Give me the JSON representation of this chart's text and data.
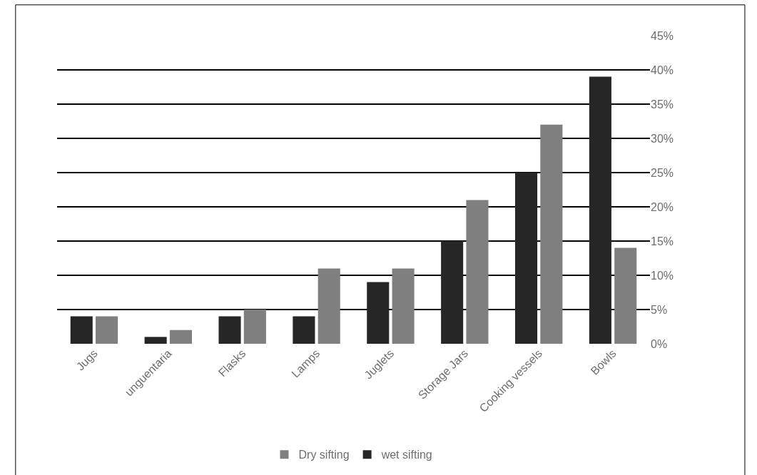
{
  "chart_data": {
    "type": "bar",
    "categories": [
      "Jugs",
      "unguentaria",
      "Flasks",
      "Lamps",
      "Juglets",
      "Storage Jars",
      "Cooking vessels",
      "Bowls"
    ],
    "series": [
      {
        "name": "wet sifting",
        "color": "#262626",
        "values": [
          4,
          1,
          4,
          4,
          9,
          15,
          25,
          39
        ]
      },
      {
        "name": "Dry sifting",
        "color": "#7f7f7f",
        "values": [
          4,
          2,
          5,
          11,
          11,
          21,
          32,
          14
        ]
      }
    ],
    "ylim": [
      0,
      45
    ],
    "yticks": [
      {
        "value": 0,
        "label": "0%"
      },
      {
        "value": 5,
        "label": "5%"
      },
      {
        "value": 10,
        "label": "10%"
      },
      {
        "value": 15,
        "label": "15%"
      },
      {
        "value": 20,
        "label": "20%"
      },
      {
        "value": 25,
        "label": "25%"
      },
      {
        "value": 30,
        "label": "30%"
      },
      {
        "value": 35,
        "label": "35%"
      },
      {
        "value": 40,
        "label": "40%"
      },
      {
        "value": 45,
        "label": "45%"
      }
    ],
    "grid": "y",
    "legend": "bottom"
  }
}
